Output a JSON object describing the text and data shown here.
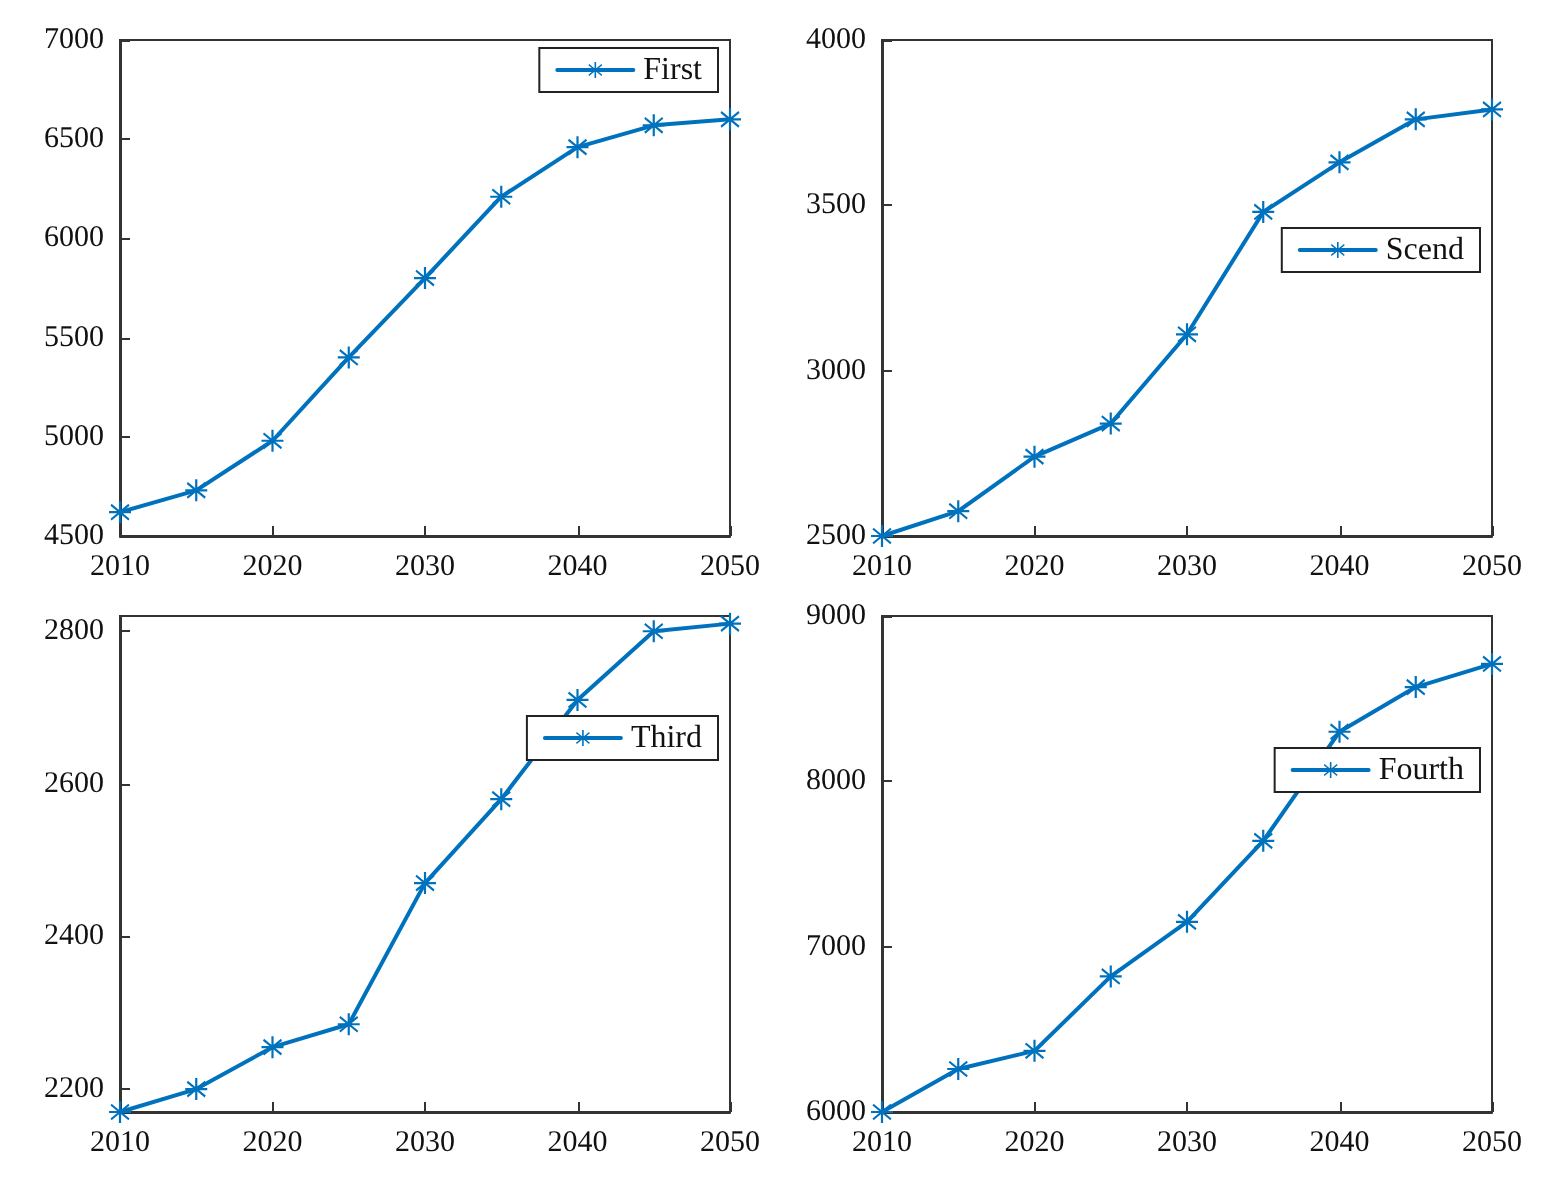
{
  "chart_data": [
    {
      "type": "line",
      "x": [
        2010,
        2015,
        2020,
        2025,
        2030,
        2035,
        2040,
        2045,
        2050
      ],
      "series": [
        {
          "name": "First",
          "color": "#0072bd",
          "values": [
            4620,
            4730,
            4980,
            5400,
            5800,
            6210,
            6460,
            6570,
            6600
          ]
        }
      ],
      "xlim": [
        2010,
        2050
      ],
      "xticks": [
        2010,
        2020,
        2030,
        2040,
        2050
      ],
      "ylim": [
        4500,
        7000
      ],
      "yticks": [
        4500,
        5000,
        5500,
        6000,
        6500,
        7000
      ],
      "legend": "top right",
      "marker": "star",
      "line_style": "solid",
      "grid": false
    },
    {
      "type": "line",
      "x": [
        2010,
        2015,
        2020,
        2025,
        2030,
        2035,
        2040,
        2045,
        2050
      ],
      "series": [
        {
          "name": "Scend",
          "color": "#0072bd",
          "values": [
            2500,
            2575,
            2740,
            2840,
            3110,
            3480,
            3630,
            3760,
            3790
          ]
        }
      ],
      "xlim": [
        2010,
        2050
      ],
      "xticks": [
        2010,
        2020,
        2030,
        2040,
        2050
      ],
      "ylim": [
        2500,
        4000
      ],
      "yticks": [
        2500,
        3000,
        3500,
        4000
      ],
      "legend": "top right",
      "marker": "star",
      "line_style": "solid",
      "grid": false
    },
    {
      "type": "line",
      "x": [
        2010,
        2015,
        2020,
        2025,
        2030,
        2035,
        2040,
        2045,
        2050
      ],
      "series": [
        {
          "name": "Third",
          "color": "#0072bd",
          "values": [
            2170,
            2200,
            2255,
            2285,
            2470,
            2580,
            2710,
            2800,
            2810
          ]
        }
      ],
      "xlim": [
        2010,
        2050
      ],
      "xticks": [
        2010,
        2020,
        2030,
        2040,
        2050
      ],
      "ylim": [
        2170,
        2820
      ],
      "yticks": [
        2200,
        2400,
        2600,
        2800
      ],
      "legend": "top right",
      "marker": "star",
      "line_style": "solid",
      "grid": false
    },
    {
      "type": "line",
      "x": [
        2010,
        2015,
        2020,
        2025,
        2030,
        2035,
        2040,
        2045,
        2050
      ],
      "series": [
        {
          "name": "Fourth",
          "color": "#0072bd",
          "values": [
            6000,
            6260,
            6370,
            6820,
            7150,
            7640,
            8300,
            8570,
            8710
          ]
        }
      ],
      "xlim": [
        2010,
        2050
      ],
      "xticks": [
        2010,
        2020,
        2030,
        2040,
        2050
      ],
      "ylim": [
        6000,
        9000
      ],
      "yticks": [
        6000,
        7000,
        8000,
        9000
      ],
      "legend": "top right",
      "marker": "star",
      "line_style": "solid",
      "grid": false
    }
  ]
}
